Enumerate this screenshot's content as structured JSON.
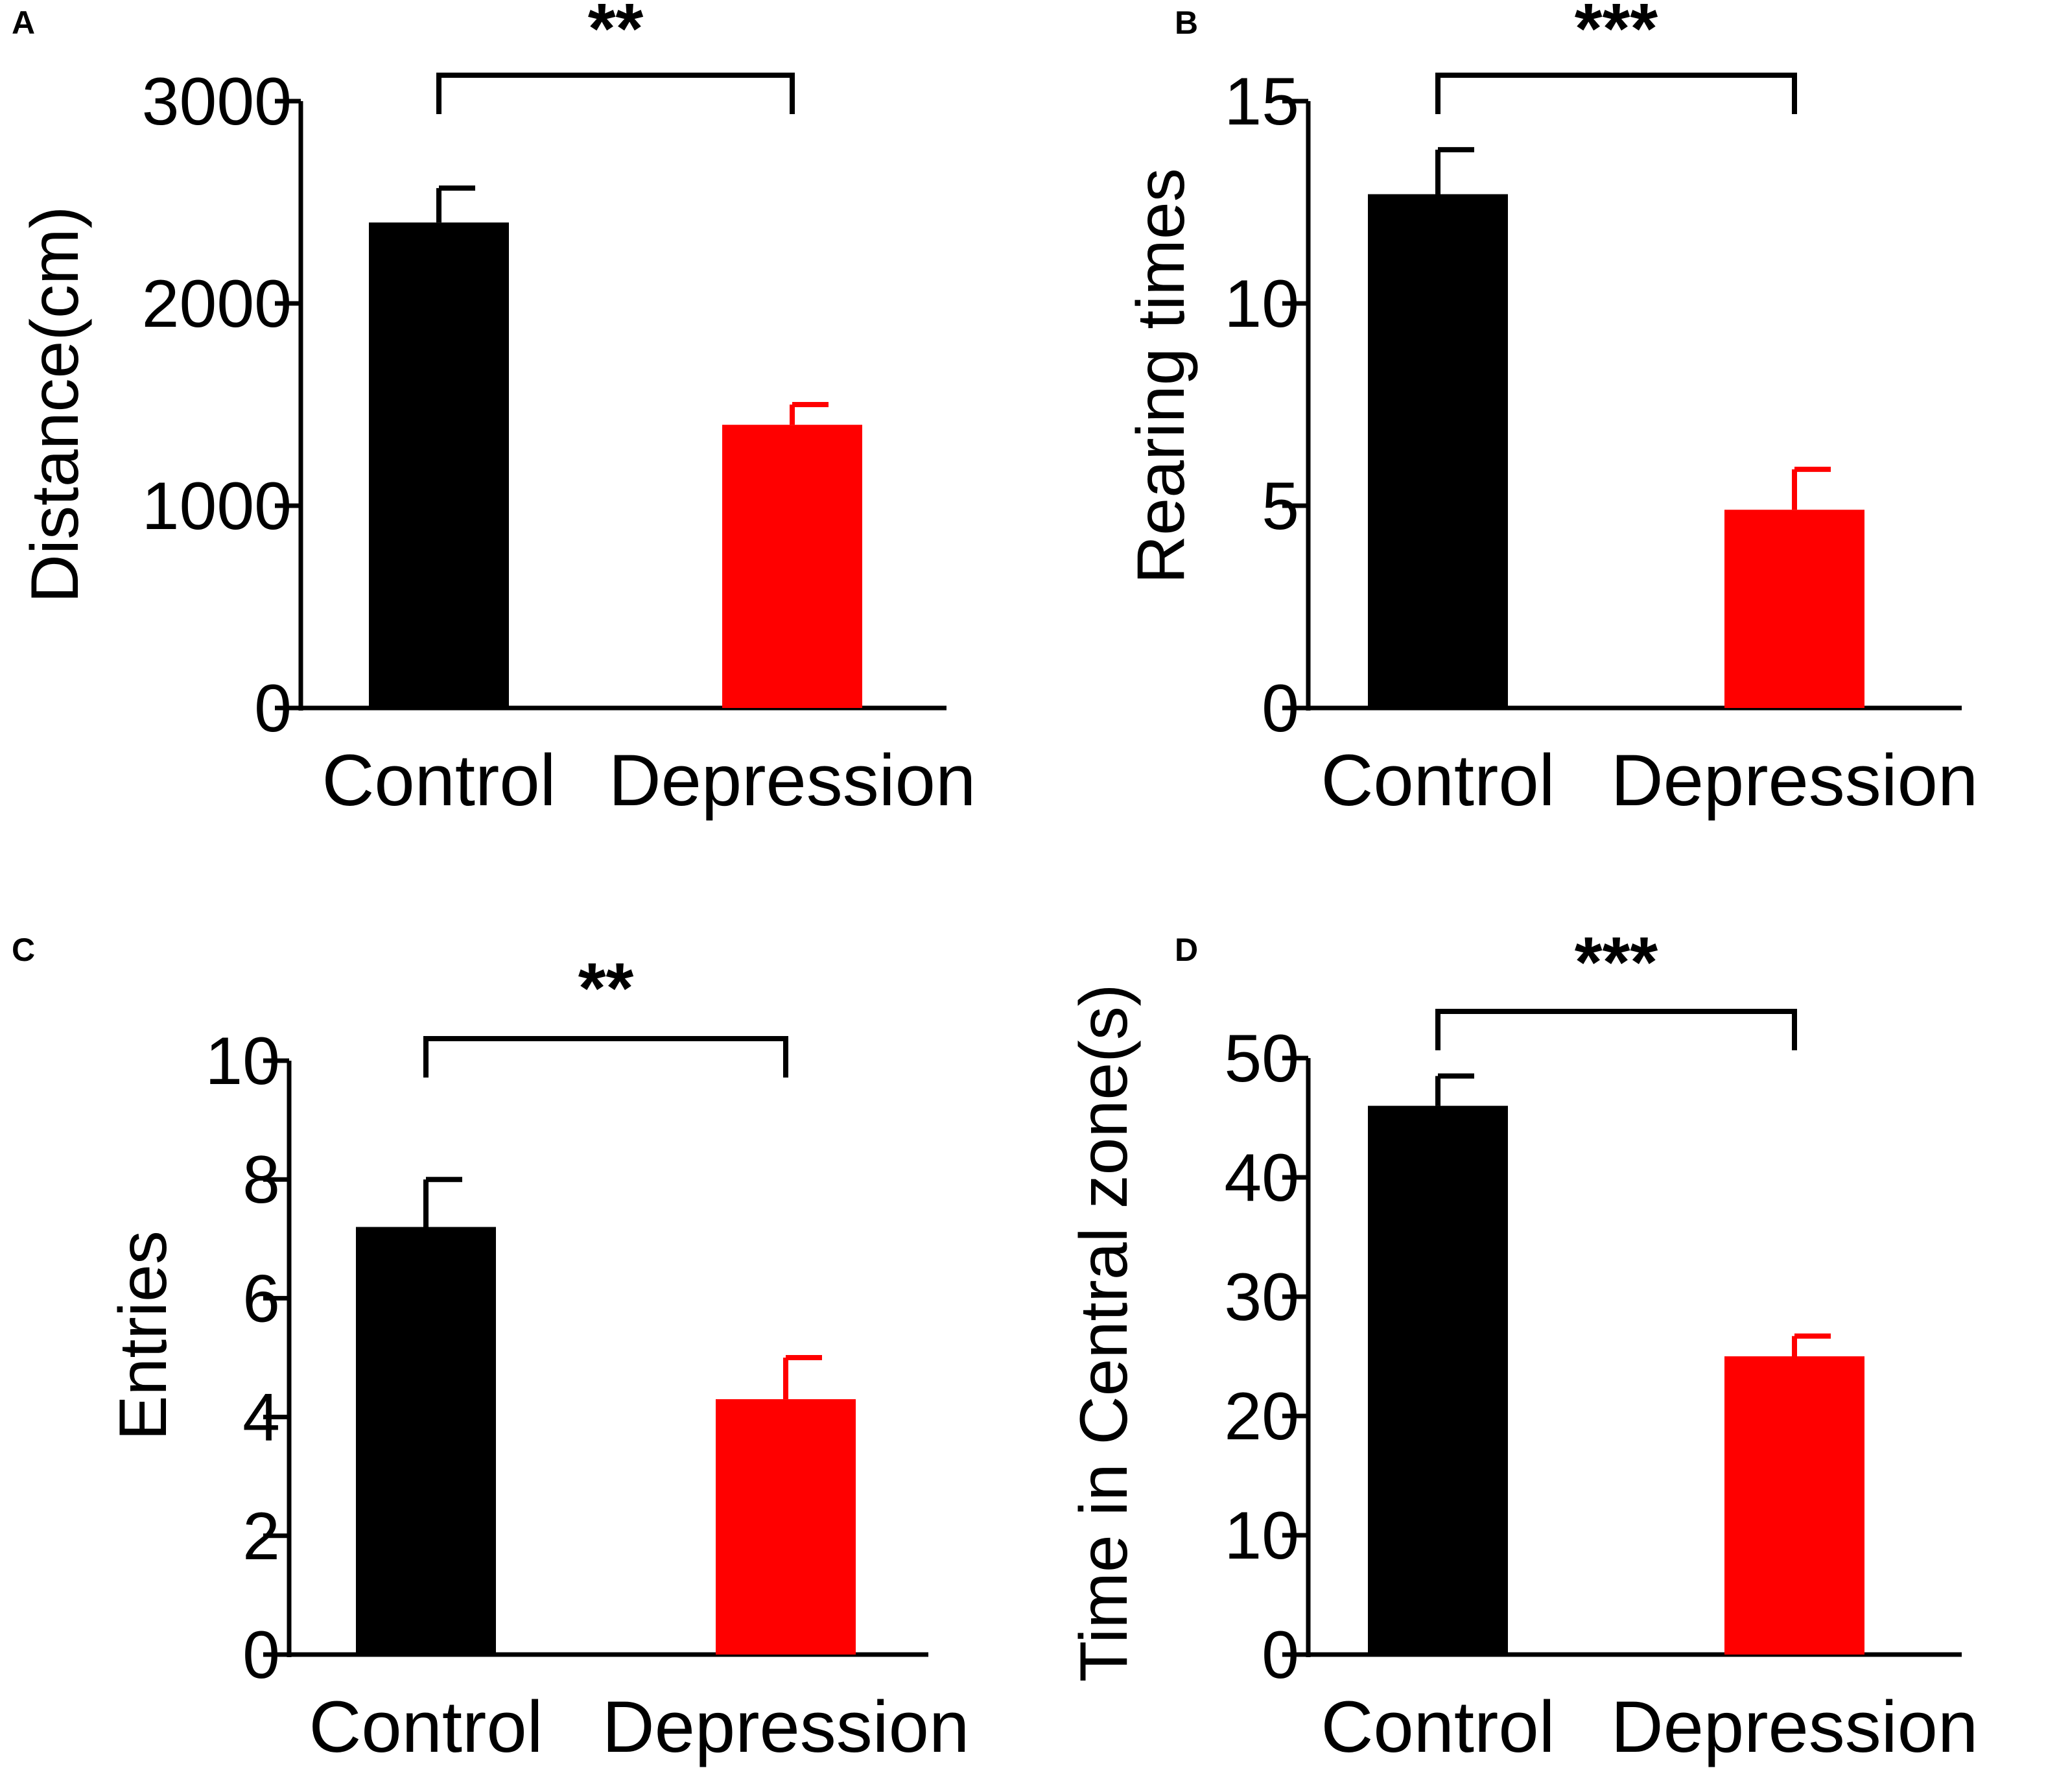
{
  "chart_data": [
    {
      "panel": "A",
      "type": "bar",
      "categories": [
        "Control",
        "Depression"
      ],
      "values": [
        2400,
        1400
      ],
      "errors": [
        170,
        100
      ],
      "colors": [
        "#000000",
        "#ff0000"
      ],
      "ylabel": "Distance(cm)",
      "xlabel": "",
      "ylim": [
        0,
        3000
      ],
      "yticks": [
        0,
        1000,
        2000,
        3000
      ],
      "significance": "**",
      "grid": false
    },
    {
      "panel": "B",
      "type": "bar",
      "categories": [
        "Control",
        "Depression"
      ],
      "values": [
        12.7,
        4.9
      ],
      "errors": [
        1.1,
        1.0
      ],
      "colors": [
        "#000000",
        "#ff0000"
      ],
      "ylabel": "Rearing times",
      "xlabel": "",
      "ylim": [
        0,
        15
      ],
      "yticks": [
        0,
        5,
        10,
        15
      ],
      "significance": "***",
      "grid": false
    },
    {
      "panel": "C",
      "type": "bar",
      "categories": [
        "Control",
        "Depression"
      ],
      "values": [
        7.2,
        4.3
      ],
      "errors": [
        0.8,
        0.7
      ],
      "colors": [
        "#000000",
        "#ff0000"
      ],
      "ylabel": "Entries",
      "xlabel": "",
      "ylim": [
        0,
        10
      ],
      "yticks": [
        0,
        2,
        4,
        6,
        8,
        10
      ],
      "significance": "**",
      "grid": false
    },
    {
      "panel": "D",
      "type": "bar",
      "categories": [
        "Control",
        "Depression"
      ],
      "values": [
        46,
        25
      ],
      "errors": [
        2.5,
        1.7
      ],
      "colors": [
        "#000000",
        "#ff0000"
      ],
      "ylabel": "Time in Central zone(s)",
      "xlabel": "",
      "ylim": [
        0,
        50
      ],
      "yticks": [
        0,
        10,
        20,
        30,
        40,
        50
      ],
      "significance": "***",
      "grid": false
    }
  ]
}
